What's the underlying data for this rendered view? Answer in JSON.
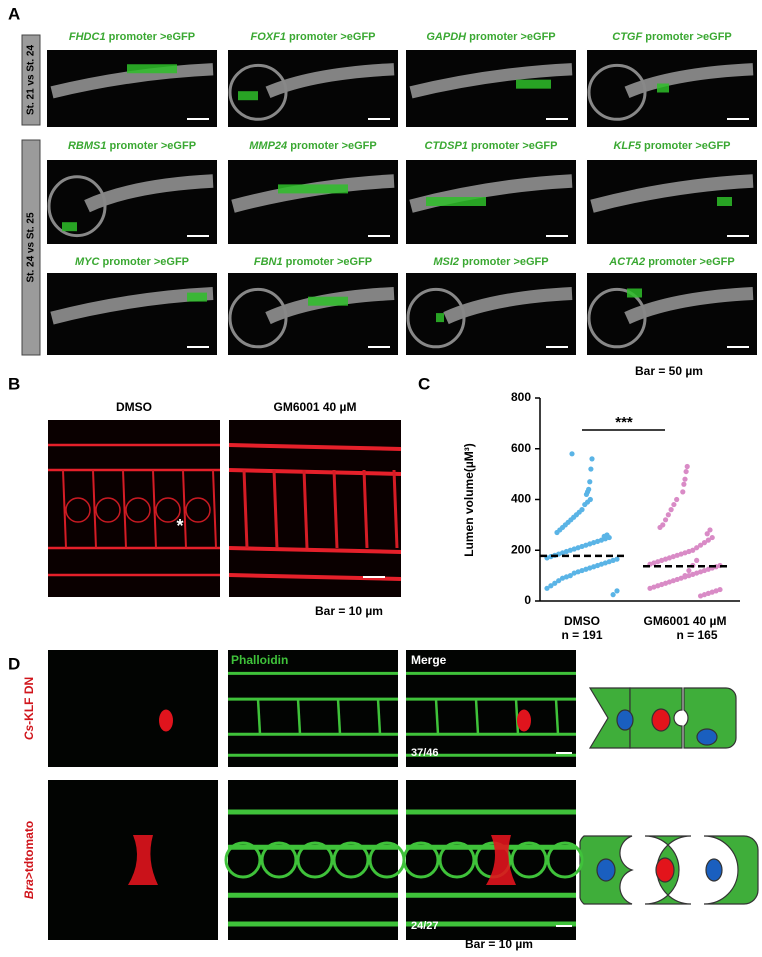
{
  "panel_labels": [
    "A",
    "B",
    "C",
    "D"
  ],
  "panel_a": {
    "groups": [
      "St. 21 vs St. 24",
      "St. 24 vs St. 25"
    ],
    "titles": [
      {
        "gene": "FHDC1",
        "text": " promoter >eGFP"
      },
      {
        "gene": "FOXF1",
        "text": " promoter >eGFP"
      },
      {
        "gene": "GAPDH",
        "text": " promoter >eGFP"
      },
      {
        "gene": "CTGF",
        "text": " promoter >eGFP"
      },
      {
        "gene": "RBMS1",
        "text": " promoter >eGFP"
      },
      {
        "gene": "MMP24",
        "text": " promoter >eGFP"
      },
      {
        "gene": "CTDSP1",
        "text": " promoter >eGFP"
      },
      {
        "gene": "KLF5",
        "text": " promoter >eGFP"
      },
      {
        "gene": "MYC",
        "text": " promoter >eGFP"
      },
      {
        "gene": "FBN1",
        "text": " promoter >eGFP"
      },
      {
        "gene": "MSI2",
        "text": " promoter >eGFP"
      },
      {
        "gene": "ACTA2",
        "text": " promoter >eGFP"
      }
    ],
    "scale_bar": "Bar = 50 µm"
  },
  "panel_b": {
    "titles": [
      "DMSO",
      "GM6001 40 µM"
    ],
    "marker": "*",
    "scale_bar": "Bar = 10 µm"
  },
  "chart_data": {
    "type": "strip",
    "ylabel": "Lumen volume(µM³)",
    "categories": [
      "DMSO",
      "GM6001 40 µM"
    ],
    "n_labels": [
      "n = 191",
      "n = 165"
    ],
    "ylim": [
      0,
      800
    ],
    "yticks": [
      0,
      200,
      400,
      600,
      800
    ],
    "significance": "***",
    "series": [
      {
        "color": "#5ab4e6",
        "mean": 178,
        "values": [
          580,
          560,
          520,
          470,
          440,
          430,
          420,
          400,
          390,
          380,
          360,
          350,
          340,
          330,
          320,
          310,
          300,
          290,
          280,
          270,
          260,
          255,
          250,
          245,
          240,
          235,
          230,
          225,
          220,
          215,
          210,
          205,
          200,
          195,
          190,
          185,
          180,
          175,
          170,
          165,
          160,
          155,
          150,
          145,
          140,
          135,
          130,
          125,
          120,
          115,
          110,
          100,
          95,
          90,
          80,
          70,
          60,
          50,
          40,
          25
        ]
      },
      {
        "color": "#d98bc6",
        "mean": 137,
        "values": [
          530,
          510,
          480,
          460,
          430,
          400,
          380,
          360,
          340,
          320,
          300,
          290,
          280,
          265,
          250,
          240,
          230,
          220,
          210,
          200,
          195,
          190,
          185,
          180,
          175,
          170,
          165,
          160,
          155,
          150,
          145,
          140,
          135,
          130,
          125,
          120,
          115,
          110,
          105,
          100,
          95,
          90,
          85,
          80,
          75,
          70,
          65,
          60,
          55,
          50,
          45,
          40,
          35,
          30,
          25,
          20,
          160,
          140,
          120,
          100
        ]
      }
    ]
  },
  "panel_d": {
    "rows": [
      {
        "italic": "Cs",
        "text": "-KLF DN",
        "count": "37/46"
      },
      {
        "italic": "Bra",
        "text": ">tdtomato",
        "count": "24/27"
      }
    ],
    "column_titles": [
      "Phalloidin",
      "Merge"
    ],
    "scale_bar": "Bar = 10 µm"
  }
}
